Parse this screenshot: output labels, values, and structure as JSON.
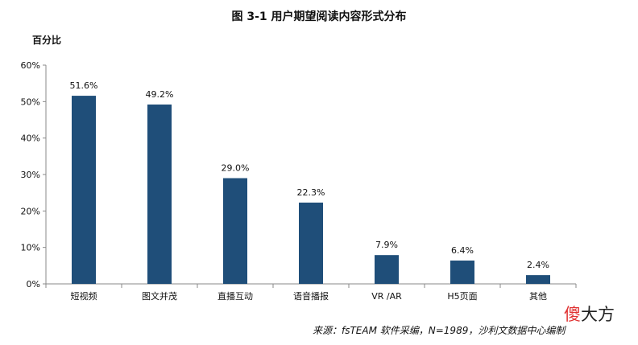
{
  "chart_data": {
    "type": "bar",
    "title": "图  3-1 用户期望阅读内容形式分布",
    "ylabel": "百分比",
    "xlabel": "",
    "categories": [
      "短视频",
      "图文并茂",
      "直播互动",
      "语音播报",
      "VR /AR",
      "H5页面",
      "其他"
    ],
    "values": [
      51.6,
      49.2,
      29.0,
      22.3,
      7.9,
      6.4,
      2.4
    ],
    "data_labels": [
      "51.6%",
      "49.2%",
      "29.0%",
      "22.3%",
      "7.9%",
      "6.4%",
      "2.4%"
    ],
    "ylim": [
      0,
      60
    ],
    "yticks": [
      0,
      10,
      20,
      30,
      40,
      50,
      60
    ],
    "ytick_labels": [
      "0%",
      "10%",
      "20%",
      "30%",
      "40%",
      "50%",
      "60%"
    ],
    "grid": false,
    "bar_color": "#1f4e79"
  },
  "source": "来源：fsTEAM 软件采编，N=1989，沙利文数据中心编制",
  "watermark": {
    "first": "傻",
    "rest": "大方"
  }
}
